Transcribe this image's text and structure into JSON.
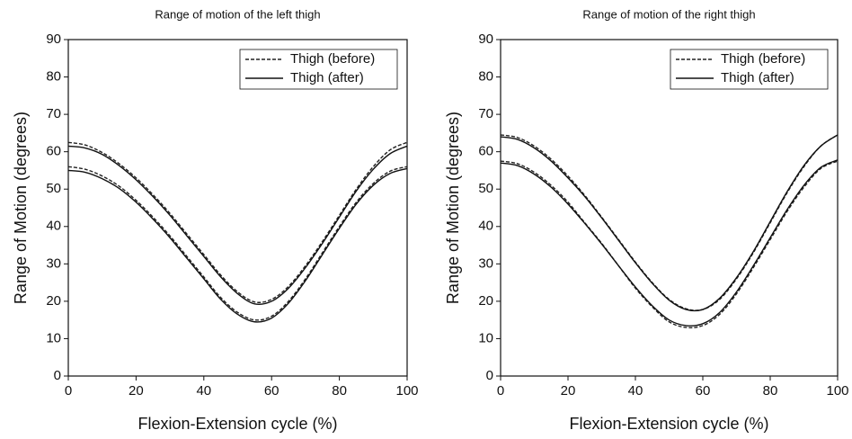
{
  "chart_data": [
    {
      "type": "line",
      "title": "Range of motion of the left thigh",
      "xlabel": "Flexion-Extension cycle (%)",
      "ylabel": "Range of Motion (degrees)",
      "xlim": [
        0,
        100
      ],
      "xticks": [
        0,
        20,
        40,
        60,
        80,
        100
      ],
      "ylim": [
        0,
        90
      ],
      "yticks": [
        0,
        10,
        20,
        30,
        40,
        50,
        60,
        70,
        80,
        90
      ],
      "legend": "upper right",
      "x": [
        0,
        5,
        10,
        15,
        20,
        25,
        30,
        35,
        40,
        45,
        50,
        55,
        60,
        65,
        70,
        75,
        80,
        85,
        90,
        95,
        100
      ],
      "series": [
        {
          "name": "Thigh (before)",
          "color": "#222222",
          "dashed": true,
          "upper": [
            62.5,
            61.8,
            59.8,
            56.8,
            53,
            48.5,
            43.5,
            38,
            32.5,
            27,
            22.5,
            19.8,
            20.5,
            24,
            29.5,
            36,
            43,
            50,
            56,
            60.5,
            62.5
          ],
          "lower": [
            56,
            55.3,
            53.5,
            50.8,
            47,
            42.5,
            37.5,
            32,
            26.5,
            21,
            17,
            15,
            16,
            20,
            26,
            33,
            40,
            46.5,
            51.5,
            54.8,
            56
          ]
        },
        {
          "name": "Thigh (after)",
          "color": "#111111",
          "dashed": false,
          "upper": [
            61.5,
            61,
            59.3,
            56.3,
            52.5,
            48,
            43,
            37.5,
            32,
            26.5,
            22,
            19.3,
            20,
            23.5,
            29,
            35.5,
            42.5,
            49.5,
            55.3,
            59.5,
            61.5
          ],
          "lower": [
            55,
            54.5,
            52.8,
            50.2,
            46.5,
            42,
            37,
            31.5,
            26,
            20.5,
            16.5,
            14.5,
            15.5,
            19.5,
            25.5,
            32.5,
            39.5,
            46,
            51,
            54.2,
            55.5
          ]
        }
      ]
    },
    {
      "type": "line",
      "title": "Range of motion of the right thigh",
      "xlabel": "Flexion-Extension cycle (%)",
      "ylabel": "Range of Motion (degrees)",
      "xlim": [
        0,
        100
      ],
      "xticks": [
        0,
        20,
        40,
        60,
        80,
        100
      ],
      "ylim": [
        0,
        90
      ],
      "yticks": [
        0,
        10,
        20,
        30,
        40,
        50,
        60,
        70,
        80,
        90
      ],
      "legend": "upper right",
      "x": [
        0,
        5,
        10,
        15,
        20,
        25,
        30,
        35,
        40,
        45,
        50,
        55,
        60,
        65,
        70,
        75,
        80,
        85,
        90,
        95,
        100
      ],
      "series": [
        {
          "name": "Thigh (before)",
          "color": "#222222",
          "dashed": true,
          "upper": [
            64.5,
            63.8,
            61.5,
            58,
            53.5,
            48.3,
            42.5,
            36.5,
            30.5,
            25,
            20.5,
            18,
            17.8,
            20.5,
            26,
            33,
            41,
            49,
            56,
            61.5,
            64.5
          ],
          "lower": [
            57.5,
            56.8,
            54.5,
            51,
            46.5,
            41,
            35.5,
            29.5,
            23.5,
            18.5,
            14.5,
            13,
            13.5,
            16.5,
            22,
            29,
            36.5,
            44,
            50.5,
            55.5,
            57.5
          ]
        },
        {
          "name": "Thigh (after)",
          "color": "#111111",
          "dashed": false,
          "upper": [
            64,
            63.3,
            61,
            57.5,
            53,
            48,
            42.3,
            36.3,
            30.3,
            24.8,
            20.3,
            17.8,
            17.8,
            20.8,
            26.3,
            33.3,
            41.3,
            49.3,
            56.3,
            61.5,
            64.5
          ],
          "lower": [
            57,
            56.3,
            54,
            50.5,
            46,
            40.8,
            35.3,
            29.5,
            23.8,
            18.8,
            15,
            13.5,
            14,
            17,
            22.5,
            29.5,
            37,
            44.5,
            51,
            55.8,
            57.8
          ]
        }
      ]
    }
  ]
}
